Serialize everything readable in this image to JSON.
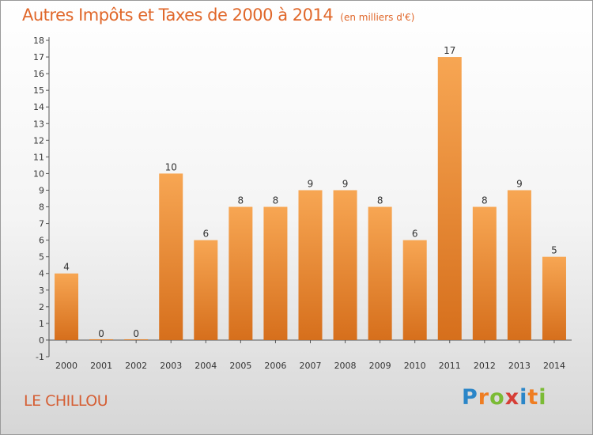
{
  "header": {
    "title": "Autres Impôts et Taxes de 2000 à 2014",
    "unit": "(en milliers d'€)"
  },
  "footer": {
    "location": "LE CHILLOU",
    "brand_letters": [
      "P",
      "r",
      "o",
      "x",
      "i",
      "t",
      "i"
    ],
    "brand_colors": [
      "#2b86c8",
      "#ef7d22",
      "#7bbb35",
      "#d63e36",
      "#2b86c8",
      "#ef7d22",
      "#7bbb35"
    ]
  },
  "chart_data": {
    "type": "bar",
    "title": "Autres Impôts et Taxes de 2000 à 2014",
    "subtitle": "(en milliers d'€)",
    "categories": [
      "2000",
      "2001",
      "2002",
      "2003",
      "2004",
      "2005",
      "2006",
      "2007",
      "2008",
      "2009",
      "2010",
      "2011",
      "2012",
      "2013",
      "2014"
    ],
    "values": [
      4,
      0,
      0,
      10,
      6,
      8,
      8,
      9,
      9,
      8,
      6,
      17,
      8,
      9,
      5
    ],
    "ylim": [
      -1,
      18
    ],
    "yticks": [
      -1,
      0,
      1,
      2,
      3,
      4,
      5,
      6,
      7,
      8,
      9,
      10,
      11,
      12,
      13,
      14,
      15,
      16,
      17,
      18
    ],
    "grid": false,
    "colors": {
      "bar_light": "#f7a653",
      "bar_dark": "#d66f1c",
      "axis": "#555555",
      "label": "#333333"
    }
  }
}
